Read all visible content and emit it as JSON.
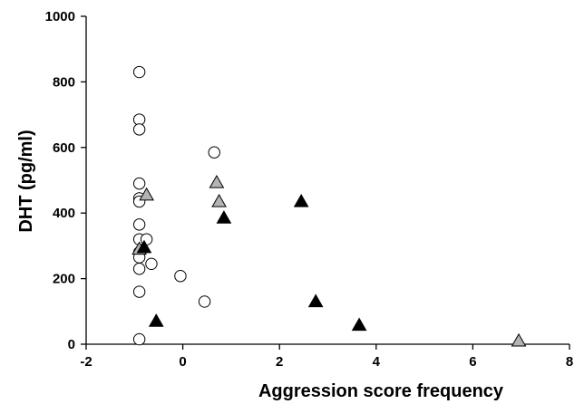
{
  "chart_data": {
    "type": "scatter",
    "title": "",
    "xlabel": "Aggression score frequency",
    "ylabel": "DHT (pg/ml)",
    "xlim": [
      -2,
      8
    ],
    "ylim": [
      0,
      1000
    ],
    "x_ticks": [
      -2,
      0,
      2,
      4,
      6,
      8
    ],
    "y_ticks": [
      0,
      200,
      400,
      600,
      800,
      1000
    ],
    "x_tick_labels": [
      "-2",
      "0",
      "2",
      "4",
      "6",
      "8"
    ],
    "y_tick_labels": [
      "0",
      "200",
      "400",
      "600",
      "800",
      "1000"
    ],
    "grid": false,
    "legend": false,
    "colors": {
      "axis": "#000000",
      "open_circle_fill": "#ffffff",
      "grey_triangle_fill": "#b3b3b3",
      "black_triangle_fill": "#000000",
      "marker_stroke": "#000000"
    },
    "series": [
      {
        "marker": "open-circle",
        "points": [
          [
            -0.9,
            830
          ],
          [
            -0.9,
            685
          ],
          [
            -0.9,
            655
          ],
          [
            -0.9,
            490
          ],
          [
            -0.9,
            445
          ],
          [
            -0.9,
            435
          ],
          [
            -0.9,
            365
          ],
          [
            -0.9,
            320
          ],
          [
            -0.9,
            280
          ],
          [
            -0.9,
            265
          ],
          [
            -0.9,
            230
          ],
          [
            -0.9,
            160
          ],
          [
            -0.9,
            15
          ],
          [
            -0.75,
            320
          ],
          [
            -0.65,
            245
          ],
          [
            -0.05,
            208
          ],
          [
            0.45,
            130
          ],
          [
            0.65,
            585
          ]
        ]
      },
      {
        "marker": "grey-triangle",
        "points": [
          [
            -0.9,
            290
          ],
          [
            -0.75,
            455
          ],
          [
            0.7,
            493
          ],
          [
            0.75,
            435
          ],
          [
            6.95,
            10
          ]
        ]
      },
      {
        "marker": "black-triangle",
        "points": [
          [
            -0.8,
            295
          ],
          [
            -0.55,
            70
          ],
          [
            0.85,
            385
          ],
          [
            2.45,
            435
          ],
          [
            2.75,
            130
          ],
          [
            3.65,
            58
          ]
        ]
      }
    ]
  }
}
